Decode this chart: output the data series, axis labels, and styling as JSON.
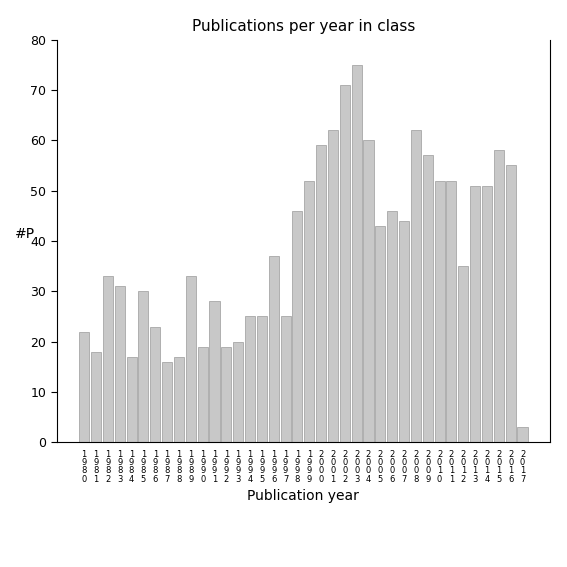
{
  "title": "Publications per year in class",
  "xlabel": "Publication year",
  "ylabel": "#P",
  "bar_color": "#c8c8c8",
  "edge_color": "#888888",
  "background_color": "#ffffff",
  "ylim": [
    0,
    80
  ],
  "yticks": [
    0,
    10,
    20,
    30,
    40,
    50,
    60,
    70,
    80
  ],
  "years": [
    1980,
    1981,
    1982,
    1983,
    1984,
    1985,
    1986,
    1987,
    1988,
    1989,
    1990,
    1991,
    1992,
    1993,
    1994,
    1995,
    1996,
    1997,
    1998,
    1999,
    2000,
    2001,
    2002,
    2003,
    2004,
    2005,
    2006,
    2007,
    2008,
    2009,
    2010,
    2011,
    2012,
    2013,
    2014,
    2015,
    2016,
    2017
  ],
  "values": [
    22,
    18,
    33,
    31,
    17,
    30,
    23,
    16,
    17,
    33,
    19,
    28,
    19,
    20,
    25,
    25,
    37,
    25,
    46,
    52,
    59,
    62,
    71,
    75,
    60,
    43,
    46,
    44,
    62,
    57,
    52,
    52,
    35,
    51,
    51,
    58,
    55,
    3
  ]
}
